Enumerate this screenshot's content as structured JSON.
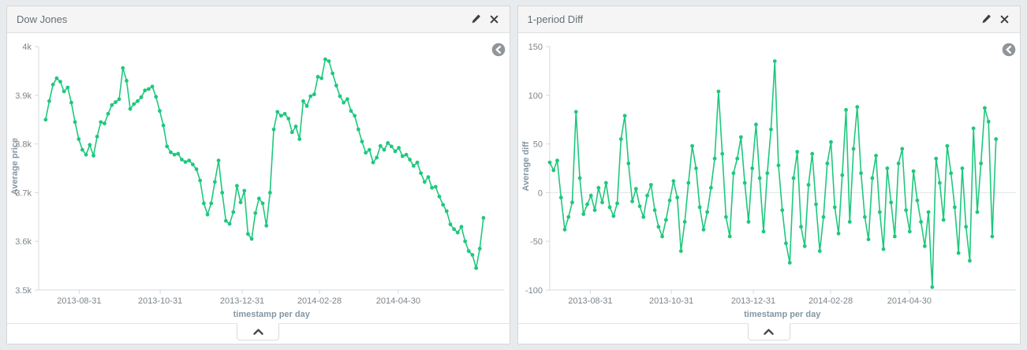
{
  "panels": [
    {
      "title": "Dow Jones"
    },
    {
      "title": "1-period Diff"
    }
  ],
  "chart_data": [
    {
      "type": "line",
      "title": "Dow Jones",
      "xlabel": "timestamp per day",
      "ylabel": "Average price",
      "ylim": [
        3500,
        4000
      ],
      "color": "#1ec87d",
      "grid": false,
      "zero_line": false,
      "x_start_fraction": 0.015,
      "x_end_fraction": 0.955,
      "yticks": [
        {
          "v": 4000,
          "label": "4k"
        },
        {
          "v": 3900,
          "label": "3.9k"
        },
        {
          "v": 3800,
          "label": "3.8k"
        },
        {
          "v": 3700,
          "label": "3.7k"
        },
        {
          "v": 3600,
          "label": "3.6k"
        },
        {
          "v": 3500,
          "label": "3.5k"
        }
      ],
      "xticks": [
        {
          "f": 0.087,
          "label": "2013-08-31"
        },
        {
          "f": 0.261,
          "label": "2013-10-31"
        },
        {
          "f": 0.437,
          "label": "2013-12-31"
        },
        {
          "f": 0.603,
          "label": "2014-02-28"
        },
        {
          "f": 0.772,
          "label": "2014-04-30"
        }
      ],
      "values": [
        3850,
        3888,
        3922,
        3935,
        3928,
        3908,
        3916,
        3885,
        3845,
        3810,
        3788,
        3778,
        3798,
        3776,
        3815,
        3845,
        3842,
        3862,
        3880,
        3886,
        3892,
        3956,
        3930,
        3872,
        3882,
        3888,
        3896,
        3910,
        3913,
        3918,
        3897,
        3868,
        3838,
        3795,
        3783,
        3778,
        3780,
        3768,
        3763,
        3766,
        3758,
        3748,
        3725,
        3678,
        3655,
        3678,
        3722,
        3766,
        3700,
        3642,
        3636,
        3660,
        3714,
        3680,
        3704,
        3615,
        3605,
        3658,
        3688,
        3678,
        3632,
        3700,
        3830,
        3866,
        3858,
        3862,
        3852,
        3824,
        3836,
        3810,
        3888,
        3878,
        3898,
        3902,
        3938,
        3935,
        3974,
        3970,
        3945,
        3920,
        3898,
        3885,
        3892,
        3868,
        3858,
        3830,
        3805,
        3782,
        3788,
        3762,
        3772,
        3796,
        3788,
        3802,
        3795,
        3785,
        3792,
        3775,
        3778,
        3768,
        3755,
        3762,
        3740,
        3722,
        3732,
        3710,
        3712,
        3692,
        3675,
        3662,
        3635,
        3625,
        3618,
        3630,
        3600,
        3580,
        3572,
        3545,
        3585,
        3648
      ]
    },
    {
      "type": "line",
      "title": "1-period Diff",
      "xlabel": "timestamp per day",
      "ylabel": "Average diff",
      "ylim": [
        -100,
        150
      ],
      "color": "#1ec87d",
      "grid": false,
      "zero_line": true,
      "x_start_fraction": 0.0,
      "x_end_fraction": 0.958,
      "yticks": [
        {
          "v": 150,
          "label": "150"
        },
        {
          "v": 100,
          "label": "100"
        },
        {
          "v": 50,
          "label": "50"
        },
        {
          "v": 0,
          "label": "0"
        },
        {
          "v": -50,
          "label": "-50"
        },
        {
          "v": -100,
          "label": "-100"
        }
      ],
      "xticks": [
        {
          "f": 0.087,
          "label": "2013-08-31"
        },
        {
          "f": 0.261,
          "label": "2013-10-31"
        },
        {
          "f": 0.437,
          "label": "2013-12-31"
        },
        {
          "f": 0.603,
          "label": "2014-02-28"
        },
        {
          "f": 0.772,
          "label": "2014-04-30"
        }
      ],
      "values": [
        31,
        23,
        33,
        -5,
        -38,
        -25,
        -10,
        83,
        15,
        -22,
        -12,
        -3,
        -18,
        5,
        -10,
        10,
        -15,
        -24,
        -11,
        55,
        79,
        30,
        -9,
        4,
        -14,
        -25,
        -3,
        8,
        -18,
        -35,
        -45,
        -28,
        -8,
        12,
        -5,
        -60,
        -30,
        10,
        48,
        25,
        -15,
        -38,
        -20,
        5,
        35,
        104,
        40,
        -25,
        -45,
        20,
        35,
        57,
        10,
        -30,
        25,
        70,
        15,
        -40,
        20,
        65,
        135,
        28,
        -18,
        -52,
        -72,
        15,
        42,
        -35,
        -55,
        8,
        40,
        -12,
        -60,
        -25,
        30,
        52,
        -15,
        -42,
        18,
        85,
        -30,
        45,
        88,
        20,
        -25,
        -48,
        15,
        38,
        -20,
        -58,
        25,
        -10,
        -45,
        30,
        45,
        -18,
        -40,
        22,
        -8,
        -30,
        -55,
        -20,
        -97,
        35,
        10,
        -28,
        48,
        20,
        -15,
        -62,
        25,
        -35,
        -70,
        66,
        -20,
        30,
        87,
        73,
        -45,
        55
      ]
    }
  ]
}
